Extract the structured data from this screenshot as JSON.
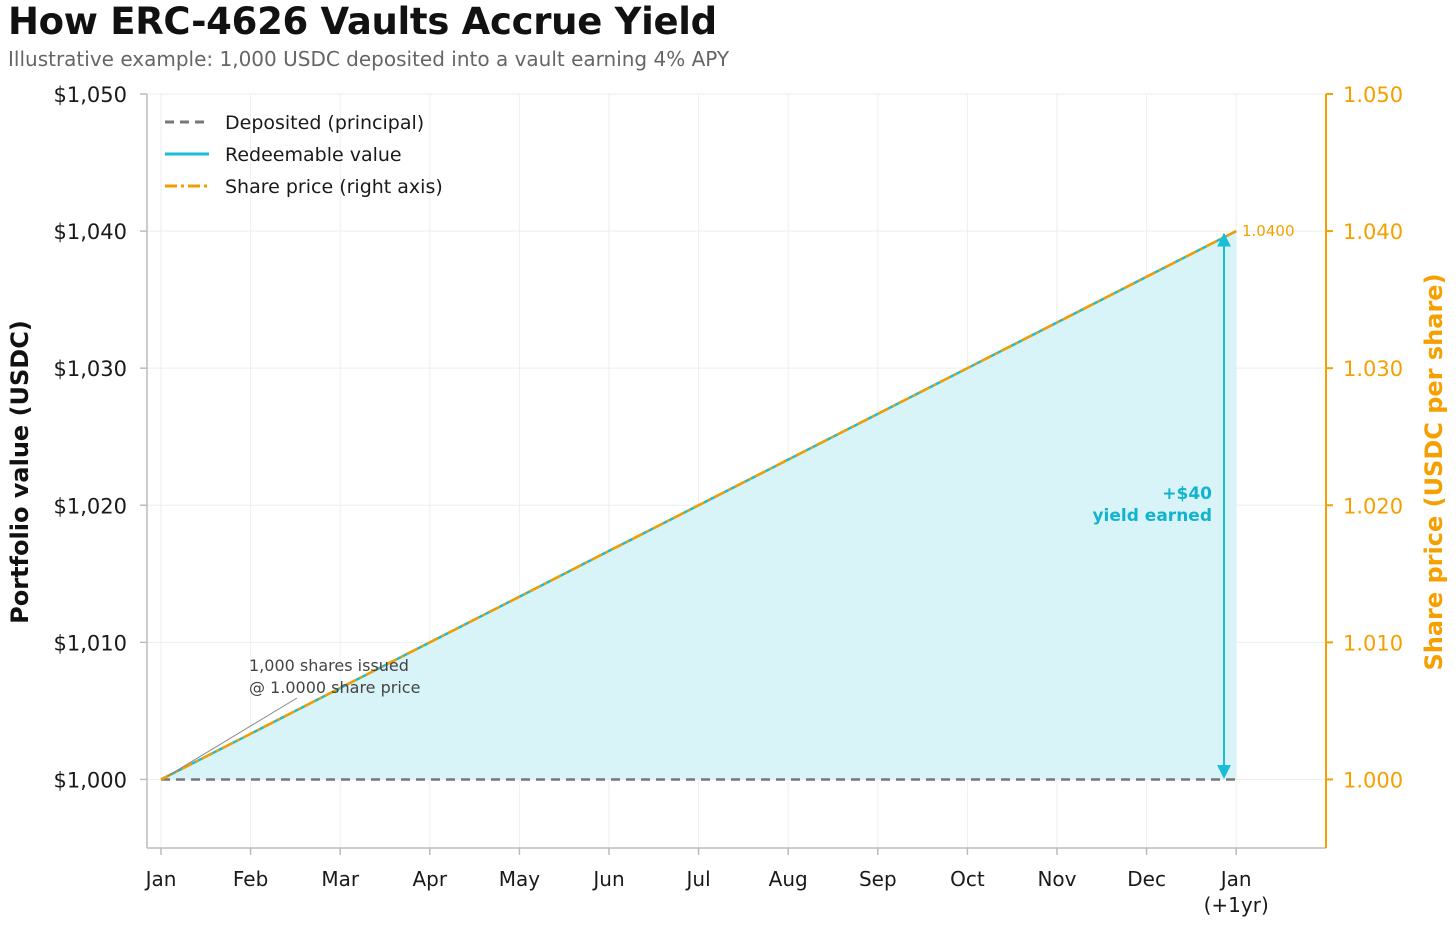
{
  "header": {
    "title": "How ERC-4626 Vaults Accrue Yield",
    "subtitle": "Illustrative example: 1,000 USDC deposited into a vault earning 4% APY"
  },
  "colors": {
    "principal": "#777777",
    "redeemable": "#1bbcd6",
    "share_price": "#f59d00",
    "fill": "#d9f4f8",
    "grid": "#eeeeee",
    "right_axis": "#f5a000"
  },
  "chart_data": {
    "type": "line",
    "categories": [
      "Jan",
      "Feb",
      "Mar",
      "Apr",
      "May",
      "Jun",
      "Jul",
      "Aug",
      "Sep",
      "Oct",
      "Nov",
      "Dec",
      "Jan\n(+1yr)"
    ],
    "x_tick_labels": [
      [
        "Jan"
      ],
      [
        "Feb"
      ],
      [
        "Mar"
      ],
      [
        "Apr"
      ],
      [
        "May"
      ],
      [
        "Jun"
      ],
      [
        "Jul"
      ],
      [
        "Aug"
      ],
      [
        "Sep"
      ],
      [
        "Oct"
      ],
      [
        "Nov"
      ],
      [
        "Dec"
      ],
      [
        "Jan",
        "(+1yr)"
      ]
    ],
    "ylabel": "Portfolio value (USDC)",
    "ylabel_right": "Share price (USDC per share)",
    "ylim": [
      995,
      1050
    ],
    "ylim_right": [
      0.995,
      1.05
    ],
    "yticks": [
      1000,
      1010,
      1020,
      1030,
      1040,
      1050
    ],
    "ytick_labels": [
      "$1,000",
      "$1,010",
      "$1,020",
      "$1,030",
      "$1,040",
      "$1,050"
    ],
    "yticks_right": [
      1.0,
      1.01,
      1.02,
      1.03,
      1.04,
      1.05
    ],
    "ytick_labels_right": [
      "1.000",
      "1.010",
      "1.020",
      "1.030",
      "1.040",
      "1.050"
    ],
    "grid": true,
    "legend_position": "top-left",
    "series": [
      {
        "name": "Deposited (principal)",
        "axis": "left",
        "style": "dashed",
        "values": [
          1000,
          1000,
          1000,
          1000,
          1000,
          1000,
          1000,
          1000,
          1000,
          1000,
          1000,
          1000,
          1000
        ]
      },
      {
        "name": "Redeemable value",
        "axis": "left",
        "style": "solid",
        "values": [
          1000,
          1003.33,
          1006.67,
          1010,
          1013.33,
          1016.67,
          1020,
          1023.33,
          1026.67,
          1030,
          1033.33,
          1036.67,
          1040
        ]
      },
      {
        "name": "Share price (right axis)",
        "axis": "right",
        "style": "dashdot",
        "values": [
          1.0,
          1.00333,
          1.00667,
          1.01,
          1.01333,
          1.01667,
          1.02,
          1.02333,
          1.02667,
          1.03,
          1.03333,
          1.03667,
          1.04
        ]
      }
    ],
    "annotations": {
      "start_line1": "1,000 shares issued",
      "start_line2": "@ 1.0000 share price",
      "yield_line1": "+$40",
      "yield_line2": "yield earned",
      "end_value": "1.0400"
    }
  }
}
